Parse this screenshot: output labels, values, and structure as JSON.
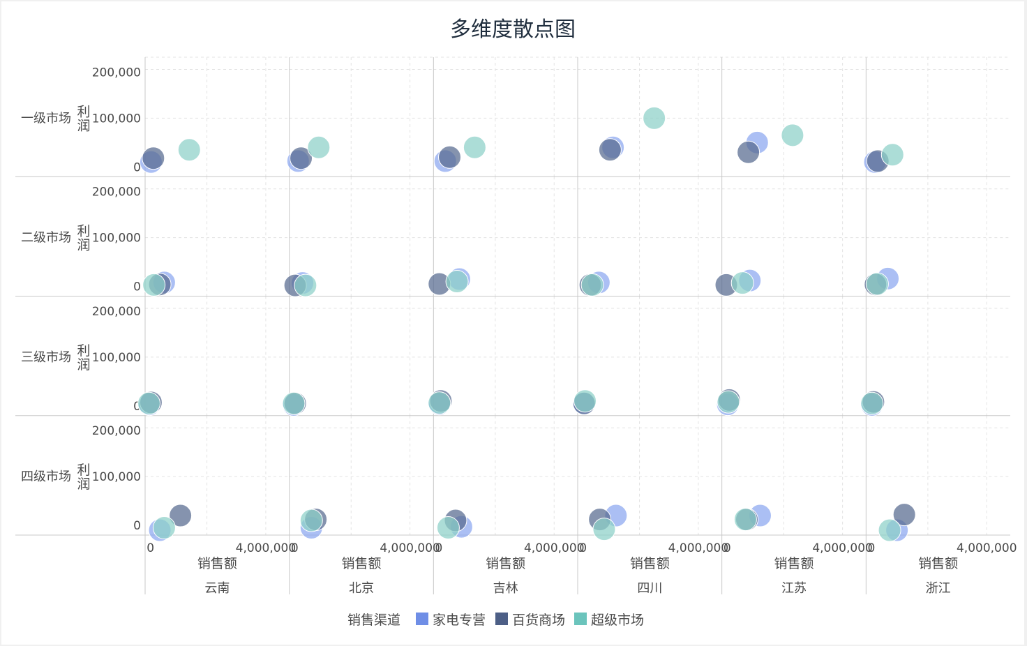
{
  "chart_data": {
    "type": "scatter",
    "title": "多维度散点图",
    "xlabel": "销售额",
    "ylabel": "利润",
    "xlim": [
      -100000,
      4800000
    ],
    "ylim": [
      -20000,
      225000
    ],
    "x_ticks": [
      {
        "value": 0,
        "label": "0"
      },
      {
        "value": 4000000,
        "label": "4,000,000"
      }
    ],
    "y_ticks": [
      {
        "value": 0,
        "label": "0"
      },
      {
        "value": 100000,
        "label": "100,000"
      },
      {
        "value": 200000,
        "label": "200,000"
      }
    ],
    "x_grid": [
      0,
      2000000,
      4000000
    ],
    "y_grid": [
      100000,
      200000
    ],
    "grid": true,
    "rows": [
      "一级市场",
      "二级市场",
      "三级市场",
      "四级市场"
    ],
    "columns": [
      "云南",
      "北京",
      "吉林",
      "四川",
      "江苏",
      "浙江"
    ],
    "legend": {
      "title": "销售渠道",
      "placement": "bottom-center",
      "items": [
        {
          "name": "家电专营",
          "color": "#6f8ee6"
        },
        {
          "name": "百货商场",
          "color": "#4d5f86"
        },
        {
          "name": "超级市场",
          "color": "#6bc4bc"
        }
      ]
    },
    "series": [
      {
        "name": "家电专营",
        "color": "#8aa6f0",
        "points": [
          {
            "row": 0,
            "col": 0,
            "x": 100000,
            "y": 10000
          },
          {
            "row": 0,
            "col": 1,
            "x": 200000,
            "y": 12000
          },
          {
            "row": 0,
            "col": 2,
            "x": 300000,
            "y": 12000
          },
          {
            "row": 0,
            "col": 3,
            "x": 1100000,
            "y": 40000
          },
          {
            "row": 0,
            "col": 4,
            "x": 1100000,
            "y": 50000
          },
          {
            "row": 0,
            "col": 5,
            "x": 200000,
            "y": 10000
          },
          {
            "row": 1,
            "col": 0,
            "x": 550000,
            "y": 8000
          },
          {
            "row": 1,
            "col": 1,
            "x": 350000,
            "y": 7000
          },
          {
            "row": 1,
            "col": 2,
            "x": 780000,
            "y": 15000
          },
          {
            "row": 1,
            "col": 3,
            "x": 620000,
            "y": 8000
          },
          {
            "row": 1,
            "col": 4,
            "x": 850000,
            "y": 12000
          },
          {
            "row": 1,
            "col": 5,
            "x": 640000,
            "y": 16000
          },
          {
            "row": 2,
            "col": 0,
            "x": 50000,
            "y": 3000
          },
          {
            "row": 2,
            "col": 1,
            "x": 50000,
            "y": 2000
          },
          {
            "row": 2,
            "col": 2,
            "x": 100000,
            "y": 4000
          },
          {
            "row": 2,
            "col": 3,
            "x": 100000,
            "y": 5000
          },
          {
            "row": 2,
            "col": 4,
            "x": 100000,
            "y": 3000
          },
          {
            "row": 2,
            "col": 5,
            "x": 100000,
            "y": 2000
          },
          {
            "row": 3,
            "col": 0,
            "x": 400000,
            "y": -10000
          },
          {
            "row": 3,
            "col": 1,
            "x": 650000,
            "y": -5000
          },
          {
            "row": 3,
            "col": 2,
            "x": 850000,
            "y": -3000
          },
          {
            "row": 3,
            "col": 3,
            "x": 1200000,
            "y": 20000
          },
          {
            "row": 3,
            "col": 4,
            "x": 1200000,
            "y": 20000
          },
          {
            "row": 3,
            "col": 5,
            "x": 950000,
            "y": -10000
          }
        ]
      },
      {
        "name": "百货商场",
        "color": "#56698f",
        "points": [
          {
            "row": 0,
            "col": 0,
            "x": 180000,
            "y": 18000
          },
          {
            "row": 0,
            "col": 1,
            "x": 300000,
            "y": 18000
          },
          {
            "row": 0,
            "col": 2,
            "x": 450000,
            "y": 20000
          },
          {
            "row": 0,
            "col": 3,
            "x": 1000000,
            "y": 35000
          },
          {
            "row": 0,
            "col": 4,
            "x": 800000,
            "y": 30000
          },
          {
            "row": 0,
            "col": 5,
            "x": 300000,
            "y": 12000
          },
          {
            "row": 1,
            "col": 0,
            "x": 400000,
            "y": 4000
          },
          {
            "row": 1,
            "col": 1,
            "x": 100000,
            "y": 2000
          },
          {
            "row": 1,
            "col": 2,
            "x": 100000,
            "y": 5000
          },
          {
            "row": 1,
            "col": 3,
            "x": 330000,
            "y": 3000
          },
          {
            "row": 1,
            "col": 4,
            "x": 50000,
            "y": 3000
          },
          {
            "row": 1,
            "col": 5,
            "x": 220000,
            "y": 4000
          },
          {
            "row": 2,
            "col": 0,
            "x": 100000,
            "y": 7000
          },
          {
            "row": 2,
            "col": 1,
            "x": 100000,
            "y": 5000
          },
          {
            "row": 2,
            "col": 2,
            "x": 150000,
            "y": 10000
          },
          {
            "row": 2,
            "col": 3,
            "x": 120000,
            "y": 5000
          },
          {
            "row": 2,
            "col": 4,
            "x": 150000,
            "y": 12000
          },
          {
            "row": 2,
            "col": 5,
            "x": 150000,
            "y": 8000
          },
          {
            "row": 3,
            "col": 0,
            "x": 1100000,
            "y": 20000
          },
          {
            "row": 3,
            "col": 1,
            "x": 800000,
            "y": 12000
          },
          {
            "row": 3,
            "col": 2,
            "x": 650000,
            "y": 10000
          },
          {
            "row": 3,
            "col": 3,
            "x": 650000,
            "y": 12000
          },
          {
            "row": 3,
            "col": 4,
            "x": 750000,
            "y": 12000
          },
          {
            "row": 3,
            "col": 5,
            "x": 1200000,
            "y": 22000
          }
        ]
      },
      {
        "name": "超级市场",
        "color": "#8cd0c8",
        "points": [
          {
            "row": 0,
            "col": 0,
            "x": 1400000,
            "y": 35000
          },
          {
            "row": 0,
            "col": 1,
            "x": 900000,
            "y": 40000
          },
          {
            "row": 0,
            "col": 2,
            "x": 1300000,
            "y": 40000
          },
          {
            "row": 0,
            "col": 3,
            "x": 2500000,
            "y": 100000
          },
          {
            "row": 0,
            "col": 4,
            "x": 2300000,
            "y": 65000
          },
          {
            "row": 0,
            "col": 5,
            "x": 800000,
            "y": 25000
          },
          {
            "row": 1,
            "col": 0,
            "x": 200000,
            "y": 3000
          },
          {
            "row": 1,
            "col": 1,
            "x": 450000,
            "y": 2000
          },
          {
            "row": 1,
            "col": 2,
            "x": 700000,
            "y": 10000
          },
          {
            "row": 1,
            "col": 3,
            "x": 400000,
            "y": 3000
          },
          {
            "row": 1,
            "col": 4,
            "x": 600000,
            "y": 7000
          },
          {
            "row": 1,
            "col": 5,
            "x": 280000,
            "y": 5000
          },
          {
            "row": 2,
            "col": 0,
            "x": 30000,
            "y": 5000
          },
          {
            "row": 2,
            "col": 1,
            "x": 50000,
            "y": 5000
          },
          {
            "row": 2,
            "col": 2,
            "x": 100000,
            "y": 6000
          },
          {
            "row": 2,
            "col": 3,
            "x": 150000,
            "y": 10000
          },
          {
            "row": 2,
            "col": 4,
            "x": 120000,
            "y": 8000
          },
          {
            "row": 2,
            "col": 5,
            "x": 100000,
            "y": 5000
          },
          {
            "row": 3,
            "col": 0,
            "x": 550000,
            "y": -5000
          },
          {
            "row": 3,
            "col": 1,
            "x": 650000,
            "y": 10000
          },
          {
            "row": 3,
            "col": 2,
            "x": 400000,
            "y": -5000
          },
          {
            "row": 3,
            "col": 3,
            "x": 800000,
            "y": -8000
          },
          {
            "row": 3,
            "col": 4,
            "x": 700000,
            "y": 12000
          },
          {
            "row": 3,
            "col": 5,
            "x": 700000,
            "y": -10000
          }
        ]
      }
    ]
  }
}
